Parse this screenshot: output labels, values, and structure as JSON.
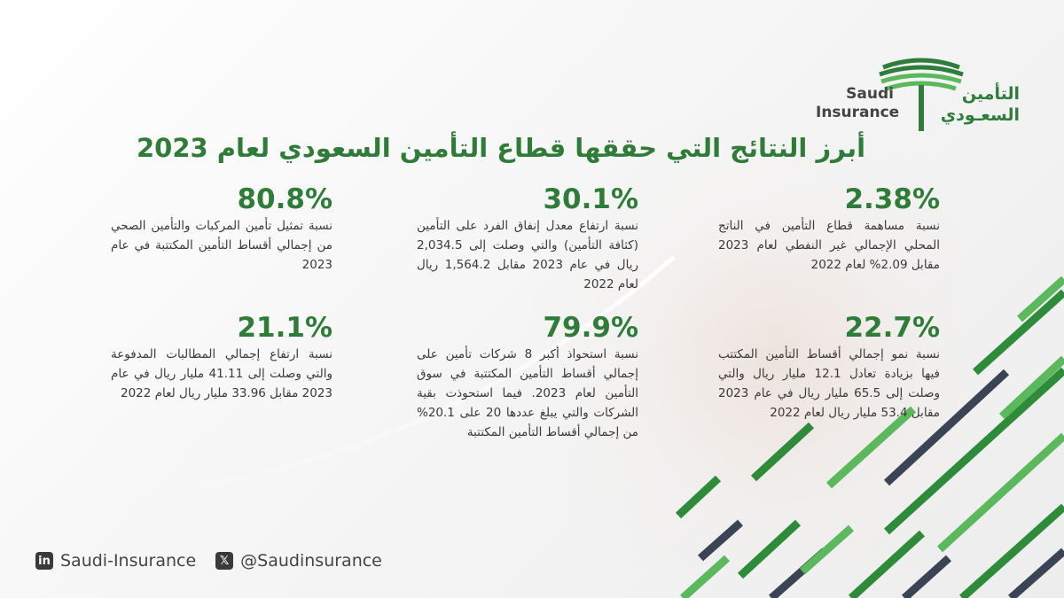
{
  "logo": {
    "en_line1": "Saudi",
    "en_line2": "Insurance",
    "ar_line1": "التأمين",
    "ar_line2": "السعـودي",
    "colors": {
      "green": "#2e7d3b",
      "light_green": "#5cb85c",
      "dark": "#444444"
    }
  },
  "title": "أبرز النتائج التي حققها قطاع التأمين السعودي لعام 2023",
  "stats": [
    {
      "value": "2.38%",
      "text": "نسبة مساهمة قطاع التأمين في الناتج المحلي الإجمالي غير النفطي لعام 2023 مقابل 2.09% لعام 2022"
    },
    {
      "value": "30.1%",
      "text": "نسبة ارتفاع معدل إنفاق الفرد على التأمين (كثافة التأمين) والتي وصلت إلى 2,034.5 ريال في عام 2023 مقابل 1,564.2 ريال لعام 2022"
    },
    {
      "value": "80.8%",
      "text": "نسبة تمثيل تأمين المركبات والتأمين الصحي من إجمالي أقساط التأمين المكتتبة في عام 2023"
    },
    {
      "value": "22.7%",
      "text": "نسبة نمو إجمالي أقساط التأمين المكتتب فيها بزيادة تعادل 12.1 مليار ريال والتي وصلت إلى 65.5 مليار ريال في عام 2023 مقابل 53.4 مليار ريال لعام 2022"
    },
    {
      "value": "79.9%",
      "text": "نسبة استحواذ أكبر 8 شركات تأمين على إجمالي أقساط التأمين المكتتبة في سوق التأمين لعام 2023. فيما استحوذت بقية الشركات والتي يبلغ عددها 20 على 20.1% من إجمالي أقساط التأمين المكتتبة"
    },
    {
      "value": "21.1%",
      "text": "نسبة ارتفاع إجمالي المطالبات المدفوعة والتي وصلت إلى 41.11 مليار ريال في عام 2023 مقابل 33.96 مليار ريال لعام 2022"
    }
  ],
  "footer": {
    "linkedin_icon": "in",
    "linkedin": "Saudi-Insurance",
    "x_icon": "𝕏",
    "x_handle": "@Saudinsurance"
  }
}
